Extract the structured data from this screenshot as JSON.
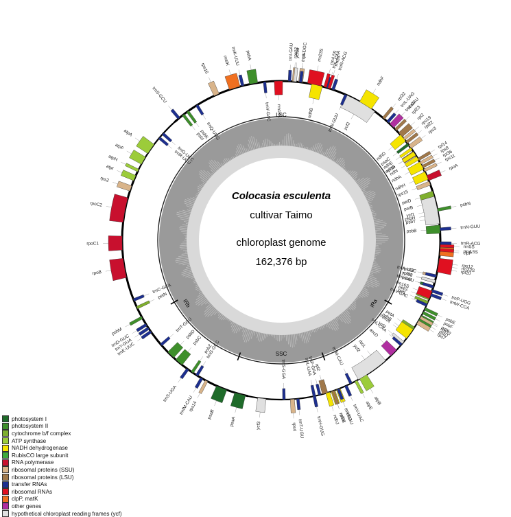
{
  "genome": {
    "species": "Colocasia esculenta",
    "cultivar": "cultivar Taimo",
    "type": "chloroplast genome",
    "size": "162,376 bp"
  },
  "regions": {
    "lsc": "LSC",
    "ira": "IRa",
    "ssc": "SSC",
    "irb": "IRb"
  },
  "colors": {
    "photosystem I": "#1f6b2a",
    "photosystem II": "#3e8f2b",
    "cytochrome b/f complex": "#7faf2e",
    "ATP synthase": "#9ccc3a",
    "NADH dehydrogenase": "#f5e400",
    "RubisCO large subunit": "#3daa3a",
    "RNA polymerase": "#c8102e",
    "ribosomal proteins (SSU)": "#d9b48a",
    "ribosomal proteins (LSU)": "#a0784a",
    "transfer RNAs": "#1d2f8f",
    "ribosomal RNAs": "#e01020",
    "clpP, matK": "#f07020",
    "other genes": "#b02ea0",
    "hypothetical chloroplast reading frames (ycf)": "#e0e0e0"
  },
  "legend": [
    "photosystem I",
    "photosystem II",
    "cytochrome b/f complex",
    "ATP synthase",
    "NADH dehydrogenase",
    "RubisCO large subunit",
    "RNA polymerase",
    "ribosomal proteins (SSU)",
    "ribosomal proteins (LSU)",
    "transfer RNAs",
    "ribosomal RNAs",
    "clpP, matK",
    "other genes",
    "hypothetical chloroplast reading frames (ycf)"
  ],
  "genes": [
    {
      "name": "psbA",
      "group": "photosystem II",
      "angle": -10,
      "span": 3,
      "outside": true
    },
    {
      "name": "trnK-UUU",
      "group": "transfer RNAs",
      "angle": -14,
      "span": 1,
      "outside": true
    },
    {
      "name": "matK",
      "group": "clpP, matK",
      "angle": -17,
      "span": 4,
      "outside": true
    },
    {
      "name": "rps16",
      "group": "ribosomal proteins (SSU)",
      "angle": -24,
      "span": 2,
      "outside": true
    },
    {
      "name": "trnQ-UUG",
      "group": "transfer RNAs",
      "angle": -32,
      "span": 1,
      "outside": false
    },
    {
      "name": "psbK",
      "group": "photosystem II",
      "angle": -36,
      "span": 1,
      "outside": false
    },
    {
      "name": "psbI",
      "group": "photosystem II",
      "angle": -38,
      "span": 1,
      "outside": false
    },
    {
      "name": "trnS-GCU",
      "group": "transfer RNAs",
      "angle": -40,
      "span": 1,
      "outside": true
    },
    {
      "name": "trnG-UCC",
      "group": "transfer RNAs",
      "angle": -48,
      "span": 1,
      "outside": false
    },
    {
      "name": "trnR-UCU",
      "group": "transfer RNAs",
      "angle": -50,
      "span": 1,
      "outside": false
    },
    {
      "name": "atpA",
      "group": "ATP synthase",
      "angle": -55,
      "span": 4,
      "outside": true
    },
    {
      "name": "atpF",
      "group": "ATP synthase",
      "angle": -60,
      "span": 3,
      "outside": true
    },
    {
      "name": "atpH",
      "group": "ATP synthase",
      "angle": -64,
      "span": 1,
      "outside": true
    },
    {
      "name": "atpI",
      "group": "ATP synthase",
      "angle": -67,
      "span": 2,
      "outside": true
    },
    {
      "name": "rps2",
      "group": "ribosomal proteins (SSU)",
      "angle": -71,
      "span": 2,
      "outside": true
    },
    {
      "name": "rpoC2",
      "group": "RNA polymerase",
      "angle": -79,
      "span": 9,
      "outside": true
    },
    {
      "name": "rpoC1",
      "group": "RNA polymerase",
      "angle": -91,
      "span": 5,
      "outside": true
    },
    {
      "name": "rpoB",
      "group": "RNA polymerase",
      "angle": -100,
      "span": 7,
      "outside": true
    },
    {
      "name": "trnC-GCA",
      "group": "transfer RNAs",
      "angle": -112,
      "span": 1,
      "outside": false
    },
    {
      "name": "petN",
      "group": "cytochrome b/f complex",
      "angle": -115,
      "span": 1,
      "outside": false
    },
    {
      "name": "psbM",
      "group": "photosystem II",
      "angle": -119,
      "span": 1,
      "outside": true
    },
    {
      "name": "trnD-GUC",
      "group": "transfer RNAs",
      "angle": -122,
      "span": 1,
      "outside": true
    },
    {
      "name": "trnY-GUA",
      "group": "transfer RNAs",
      "angle": -123.5,
      "span": 1,
      "outside": true
    },
    {
      "name": "trnE-UUC",
      "group": "transfer RNAs",
      "angle": -125,
      "span": 1,
      "outside": true
    },
    {
      "name": "trnT-GGU",
      "group": "transfer RNAs",
      "angle": -131,
      "span": 1,
      "outside": false
    },
    {
      "name": "psbD",
      "group": "photosystem II",
      "angle": -136,
      "span": 3,
      "outside": false
    },
    {
      "name": "psbC",
      "group": "photosystem II",
      "angle": -140,
      "span": 3,
      "outside": false
    },
    {
      "name": "trnS-UGA",
      "group": "transfer RNAs",
      "angle": -144,
      "span": 1,
      "outside": true
    },
    {
      "name": "psbZ",
      "group": "photosystem II",
      "angle": -146,
      "span": 1,
      "outside": false
    },
    {
      "name": "trnG-GCC",
      "group": "transfer RNAs",
      "angle": -148,
      "span": 1,
      "outside": false
    },
    {
      "name": "trnfM-CAU",
      "group": "transfer RNAs",
      "angle": -150,
      "span": 1,
      "outside": true
    },
    {
      "name": "rps14",
      "group": "ribosomal proteins (SSU)",
      "angle": -152,
      "span": 1,
      "outside": true
    },
    {
      "name": "psaB",
      "group": "photosystem I",
      "angle": -158,
      "span": 4,
      "outside": true
    },
    {
      "name": "psaA",
      "group": "photosystem I",
      "angle": -165,
      "span": 4,
      "outside": true
    },
    {
      "name": "ycf3",
      "group": "hypothetical chloroplast reading frames (ycf)",
      "angle": -173,
      "span": 3,
      "outside": true
    },
    {
      "name": "trnS-GGA",
      "group": "transfer RNAs",
      "angle": -181,
      "span": 1,
      "outside": false
    },
    {
      "name": "rps4",
      "group": "ribosomal proteins (SSU)",
      "angle": -184,
      "span": 1.5,
      "outside": true
    },
    {
      "name": "trnT-UGU",
      "group": "transfer RNAs",
      "angle": -186,
      "span": 1,
      "outside": true
    },
    {
      "name": "trnL-UAA",
      "group": "transfer RNAs",
      "angle": -192,
      "span": 1,
      "outside": false
    },
    {
      "name": "trnF-GAA",
      "group": "transfer RNAs",
      "angle": -194,
      "span": 1,
      "outside": false
    },
    {
      "name": "ndhJ",
      "group": "NADH dehydrogenase",
      "angle": -197,
      "span": 1.5,
      "outside": true
    },
    {
      "name": "ndhK",
      "group": "NADH dehydrogenase",
      "angle": -199,
      "span": 1.5,
      "outside": true
    },
    {
      "name": "ndhC",
      "group": "NADH dehydrogenase",
      "angle": -201,
      "span": 1.5,
      "outside": true
    },
    {
      "name": "trnV-UAC",
      "group": "transfer RNAs",
      "angle": -204,
      "span": 1,
      "outside": true
    },
    {
      "name": "trnM-CAU",
      "group": "transfer RNAs",
      "angle": -206,
      "span": 1,
      "outside": false
    },
    {
      "name": "atpE",
      "group": "ATP synthase",
      "angle": -208,
      "span": 1,
      "outside": true
    },
    {
      "name": "atpB",
      "group": "ATP synthase",
      "angle": -211,
      "span": 3,
      "outside": true
    },
    {
      "name": "rbcL",
      "group": "RubisCO large subunit",
      "angle": -218,
      "span": 3,
      "outside": false
    },
    {
      "name": "accD",
      "group": "other genes",
      "angle": -225,
      "span": 3,
      "outside": false
    },
    {
      "name": "ycf4",
      "group": "hypothetical chloroplast reading frames (ycf)",
      "angle": -230,
      "span": 1,
      "outside": false
    },
    {
      "name": "cemA",
      "group": "other genes",
      "angle": -233,
      "span": 1.5,
      "outside": false
    },
    {
      "name": "petA",
      "group": "cytochrome b/f complex",
      "angle": -236,
      "span": 2,
      "outside": false
    },
    {
      "name": "psbJ",
      "group": "photosystem II",
      "angle": -240,
      "span": 1,
      "outside": true
    },
    {
      "name": "psbL",
      "group": "photosystem II",
      "angle": -241.5,
      "span": 1,
      "outside": true
    },
    {
      "name": "psbF",
      "group": "photosystem II",
      "angle": -243,
      "span": 1,
      "outside": true
    },
    {
      "name": "psbE",
      "group": "photosystem II",
      "angle": -244.5,
      "span": 1,
      "outside": true
    },
    {
      "name": "petL",
      "group": "cytochrome b/f complex",
      "angle": -247,
      "span": 1,
      "outside": false
    },
    {
      "name": "petG",
      "group": "cytochrome b/f complex",
      "angle": -248.5,
      "span": 1,
      "outside": false
    },
    {
      "name": "trnW-CCA",
      "group": "transfer RNAs",
      "angle": -250,
      "span": 1,
      "outside": true
    },
    {
      "name": "trnP-UGG",
      "group": "transfer RNAs",
      "angle": -251.5,
      "span": 1,
      "outside": true
    },
    {
      "name": "psaJ",
      "group": "photosystem I",
      "angle": -253,
      "span": 1,
      "outside": false
    },
    {
      "name": "rpl33",
      "group": "ribosomal proteins (LSU)",
      "angle": -255,
      "span": 1,
      "outside": false
    },
    {
      "name": "rps18",
      "group": "ribosomal proteins (SSU)",
      "angle": -257,
      "span": 1,
      "outside": false
    },
    {
      "name": "rpl20",
      "group": "ribosomal proteins (LSU)",
      "angle": -260,
      "span": 1,
      "outside": true
    },
    {
      "name": "rps12",
      "group": "ribosomal proteins (SSU)",
      "angle": -262,
      "span": 1,
      "outside": true
    },
    {
      "name": "clpP",
      "group": "clpP, matK",
      "angle": -266,
      "span": 3,
      "outside": true
    },
    {
      "name": "psbB",
      "group": "photosystem II",
      "angle": -274,
      "span": 3,
      "outside": false
    },
    {
      "name": "psbT",
      "group": "photosystem II",
      "angle": -278,
      "span": 1,
      "outside": false
    },
    {
      "name": "psbH",
      "group": "photosystem II",
      "angle": -279.5,
      "span": 1,
      "outside": false
    },
    {
      "name": "psbN",
      "group": "photosystem II",
      "angle": -281,
      "span": 1,
      "outside": true
    },
    {
      "name": "petB",
      "group": "cytochrome b/f complex",
      "angle": -284,
      "span": 2,
      "outside": false
    },
    {
      "name": "petD",
      "group": "cytochrome b/f complex",
      "angle": -287,
      "span": 2,
      "outside": false
    },
    {
      "name": "rpoA",
      "group": "RNA polymerase",
      "angle": -293,
      "span": 2,
      "outside": true
    },
    {
      "name": "rps11",
      "group": "ribosomal proteins (SSU)",
      "angle": -296,
      "span": 1,
      "outside": true
    },
    {
      "name": "rpl36",
      "group": "ribosomal proteins (LSU)",
      "angle": -297.5,
      "span": 1,
      "outside": true
    },
    {
      "name": "rps8",
      "group": "ribosomal proteins (SSU)",
      "angle": -299,
      "span": 1,
      "outside": true
    },
    {
      "name": "rpl14",
      "group": "ribosomal proteins (LSU)",
      "angle": -300.5,
      "span": 1,
      "outside": true
    },
    {
      "name": "rpl16",
      "group": "ribosomal proteins (LSU)",
      "angle": -303,
      "span": 2,
      "outside": false
    },
    {
      "name": "rps3",
      "group": "ribosomal proteins (SSU)",
      "angle": -306,
      "span": 1.5,
      "outside": true
    },
    {
      "name": "rpl22",
      "group": "ribosomal proteins (LSU)",
      "angle": -308,
      "span": 1,
      "outside": true
    },
    {
      "name": "rps19",
      "group": "ribosomal proteins (SSU)",
      "angle": -309.5,
      "span": 1,
      "outside": true
    },
    {
      "name": "rpl2",
      "group": "ribosomal proteins (LSU)",
      "angle": -311.5,
      "span": 2,
      "outside": true
    },
    {
      "name": "rpl23",
      "group": "ribosomal proteins (LSU)",
      "angle": -314,
      "span": 1,
      "outside": true
    },
    {
      "name": "trnI-CAU",
      "group": "transfer RNAs",
      "angle": -316,
      "span": 1,
      "outside": true
    },
    {
      "name": "ycf2",
      "group": "hypothetical chloroplast reading frames (ycf)",
      "angle": -330,
      "span": 12,
      "outside": false
    },
    {
      "name": "trnL-CAA",
      "group": "transfer RNAs",
      "angle": -343,
      "span": 1,
      "outside": true
    },
    {
      "name": "ndhB",
      "group": "NADH dehydrogenase",
      "angle": -347,
      "span": 4,
      "outside": false
    },
    {
      "name": "rps7",
      "group": "ribosomal proteins (SSU)",
      "angle": -353,
      "span": 1.5,
      "outside": true
    },
    {
      "name": "rps12",
      "group": "ribosomal proteins (SSU)",
      "angle": -355.5,
      "span": 1,
      "outside": true
    },
    {
      "name": "trnV-GAC",
      "group": "transfer RNAs",
      "angle": -6,
      "span": 1,
      "outside": false
    },
    {
      "name": "rrn16S",
      "group": "ribosomal RNAs",
      "angle": -1,
      "span": 3,
      "outside": false
    },
    {
      "name": "trnI-GAU",
      "group": "transfer RNAs",
      "angle": 3,
      "span": 1,
      "outside": true
    },
    {
      "name": "ycf68",
      "group": "hypothetical chloroplast reading frames (ycf)",
      "angle": 5,
      "span": 1,
      "outside": true
    },
    {
      "name": "trnA-UGC",
      "group": "transfer RNAs",
      "angle": 7,
      "span": 1,
      "outside": true
    },
    {
      "name": "rrn23S",
      "group": "ribosomal RNAs",
      "angle": 12,
      "span": 5,
      "outside": true
    },
    {
      "name": "rrn4.5S",
      "group": "ribosomal RNAs",
      "angle": 16,
      "span": 1,
      "outside": true
    },
    {
      "name": "rrn5S",
      "group": "ribosomal RNAs",
      "angle": 17.5,
      "span": 1,
      "outside": true
    },
    {
      "name": "trnR-ACG",
      "group": "transfer RNAs",
      "angle": 19,
      "span": 1,
      "outside": true
    },
    {
      "name": "trnN-GUU",
      "group": "transfer RNAs",
      "angle": 24,
      "span": 1,
      "outside": false
    },
    {
      "name": "ndhF",
      "group": "NADH dehydrogenase",
      "angle": 32,
      "span": 5,
      "outside": true
    },
    {
      "name": "rpl32",
      "group": "ribosomal proteins (LSU)",
      "angle": 40,
      "span": 1,
      "outside": true
    },
    {
      "name": "trnL-UAG",
      "group": "transfer RNAs",
      "angle": 42,
      "span": 1,
      "outside": true
    },
    {
      "name": "ccsA",
      "group": "other genes",
      "angle": 44,
      "span": 2,
      "outside": true
    },
    {
      "name": "ndhD",
      "group": "NADH dehydrogenase",
      "angle": 50,
      "span": 3,
      "outside": false
    },
    {
      "name": "psaC",
      "group": "photosystem I",
      "angle": 53,
      "span": 1,
      "outside": false
    },
    {
      "name": "ndhE",
      "group": "NADH dehydrogenase",
      "angle": 55,
      "span": 1,
      "outside": false
    },
    {
      "name": "ndhG",
      "group": "NADH dehydrogenase",
      "angle": 57,
      "span": 1.5,
      "outside": false
    },
    {
      "name": "ndhI",
      "group": "NADH dehydrogenase",
      "angle": 59,
      "span": 1.5,
      "outside": false
    },
    {
      "name": "ndhA",
      "group": "NADH dehydrogenase",
      "angle": 62,
      "span": 3,
      "outside": false
    },
    {
      "name": "ndhH",
      "group": "NADH dehydrogenase",
      "angle": 66,
      "span": 3,
      "outside": false
    },
    {
      "name": "rps15",
      "group": "ribosomal proteins (SSU)",
      "angle": 69,
      "span": 1.5,
      "outside": false
    },
    {
      "name": "ycf1",
      "group": "hypothetical chloroplast reading frames (ycf)",
      "angle": 79,
      "span": 10,
      "outside": false
    },
    {
      "name": "trnN-GUU",
      "group": "transfer RNAs",
      "angle": 86,
      "span": 1,
      "outside": true
    },
    {
      "name": "rrn5S",
      "group": "ribosomal RNAs",
      "angle": 92,
      "span": 1,
      "outside": true
    },
    {
      "name": "rrn4.5S",
      "group": "ribosomal RNAs",
      "angle": 93.5,
      "span": 1,
      "outside": true
    },
    {
      "name": "trnR-ACG",
      "group": "transfer RNAs",
      "angle": 91,
      "span": 1,
      "outside": true
    },
    {
      "name": "rrn23S",
      "group": "ribosomal RNAs",
      "angle": 99,
      "span": 5,
      "outside": true
    },
    {
      "name": "trnA-UGC",
      "group": "transfer RNAs",
      "angle": 103,
      "span": 1,
      "outside": false
    },
    {
      "name": "ycf68",
      "group": "hypothetical chloroplast reading frames (ycf)",
      "angle": 105,
      "span": 1,
      "outside": false
    },
    {
      "name": "trnI-GAU",
      "group": "transfer RNAs",
      "angle": 107,
      "span": 1,
      "outside": false
    },
    {
      "name": "rrn16S",
      "group": "ribosomal RNAs",
      "angle": 110,
      "span": 3,
      "outside": false
    },
    {
      "name": "trnV-GAC",
      "group": "transfer RNAs",
      "angle": 114,
      "span": 1,
      "outside": false
    },
    {
      "name": "rps12",
      "group": "ribosomal proteins (SSU)",
      "angle": 119,
      "span": 1,
      "outside": true
    },
    {
      "name": "rps7",
      "group": "ribosomal proteins (SSU)",
      "angle": 121,
      "span": 1.5,
      "outside": true
    },
    {
      "name": "ndhB",
      "group": "NADH dehydrogenase",
      "angle": 126,
      "span": 4,
      "outside": false
    },
    {
      "name": "trnL-CAA",
      "group": "transfer RNAs",
      "angle": 131,
      "span": 1,
      "outside": false
    },
    {
      "name": "ycf2",
      "group": "hypothetical chloroplast reading frames (ycf)",
      "angle": 145,
      "span": 12,
      "outside": false
    },
    {
      "name": "trnI-CAU",
      "group": "transfer RNAs",
      "angle": 159,
      "span": 1,
      "outside": true
    },
    {
      "name": "rpl23",
      "group": "ribosomal proteins (LSU)",
      "angle": 161,
      "span": 1,
      "outside": true
    },
    {
      "name": "rpl2",
      "group": "ribosomal proteins (LSU)",
      "angle": 164,
      "span": 2,
      "outside": false
    },
    {
      "name": "trnH-GUG",
      "group": "transfer RNAs",
      "angle": 168,
      "span": 1,
      "outside": true
    }
  ]
}
